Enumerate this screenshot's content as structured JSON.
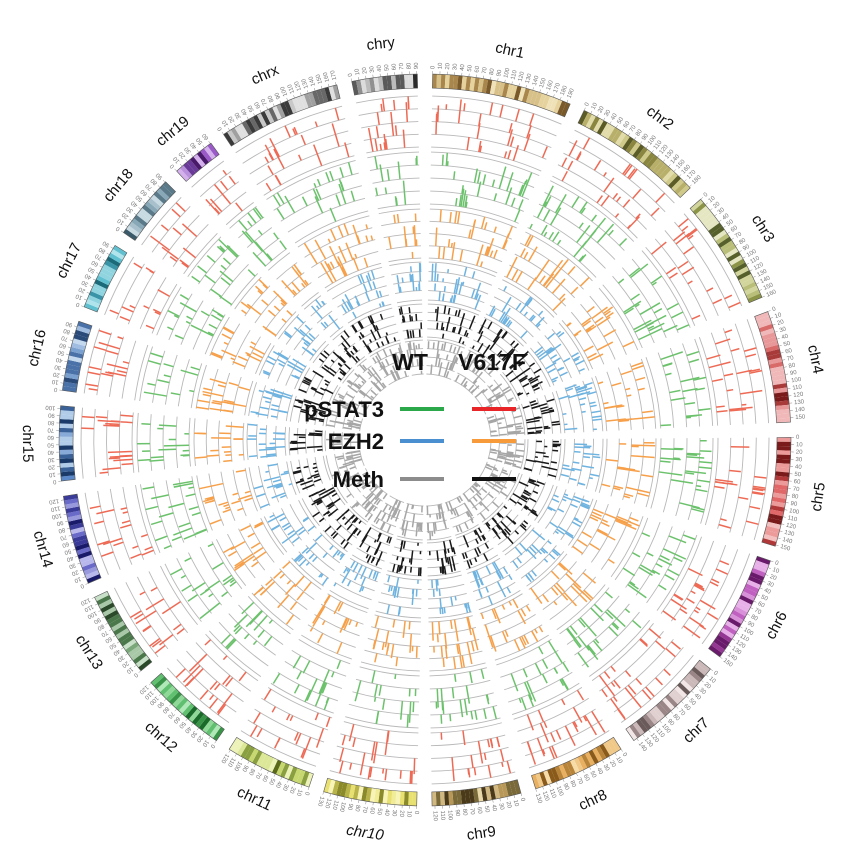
{
  "chromosomes": [
    {
      "name": "chr1",
      "size": 195,
      "ticks": [
        0,
        10,
        20,
        30,
        40,
        50,
        60,
        70,
        80,
        90,
        100,
        110,
        120,
        130,
        140,
        150,
        160,
        170,
        180,
        190
      ],
      "band_colors": [
        "#7a5a2a",
        "#d8c089",
        "#f0e2b8",
        "#a9874c",
        "#e6d29d"
      ]
    },
    {
      "name": "chr2",
      "size": 182,
      "ticks": [
        0,
        10,
        20,
        30,
        40,
        50,
        60,
        70,
        80,
        90,
        100,
        110,
        120,
        130,
        140,
        150,
        160,
        170,
        180
      ],
      "band_colors": [
        "#5b5b25",
        "#b8b06a",
        "#e2dcaa",
        "#8a8640",
        "#cfc98a"
      ]
    },
    {
      "name": "chr3",
      "size": 160,
      "ticks": [
        0,
        10,
        20,
        30,
        40,
        50,
        60,
        70,
        80,
        90,
        100,
        110,
        120,
        130,
        140,
        150,
        160
      ],
      "band_colors": [
        "#55602a",
        "#b9be78",
        "#e5e7c2",
        "#8c9448",
        "#d2d59c"
      ]
    },
    {
      "name": "chr4",
      "size": 156,
      "ticks": [
        0,
        10,
        20,
        30,
        40,
        50,
        60,
        70,
        80,
        90,
        100,
        110,
        120,
        130,
        140,
        150
      ],
      "band_colors": [
        "#7a1a1a",
        "#d86a6a",
        "#f0b8b8",
        "#a83a3a",
        "#e89898"
      ]
    },
    {
      "name": "chr5",
      "size": 152,
      "ticks": [
        0,
        10,
        20,
        30,
        40,
        50,
        60,
        70,
        80,
        90,
        100,
        110,
        120,
        130,
        140,
        150
      ],
      "band_colors": [
        "#7a1a1a",
        "#e06868",
        "#f4c0c0",
        "#b03838",
        "#ec9a9a"
      ]
    },
    {
      "name": "chr6",
      "size": 150,
      "ticks": [
        0,
        10,
        20,
        30,
        40,
        50,
        60,
        70,
        80,
        90,
        100,
        110,
        120,
        130,
        140,
        150
      ],
      "band_colors": [
        "#6a1a6a",
        "#c060c0",
        "#e8b0e8",
        "#943894",
        "#d890d8"
      ]
    },
    {
      "name": "chr7",
      "size": 145,
      "ticks": [
        0,
        10,
        20,
        30,
        40,
        50,
        60,
        70,
        80,
        90,
        100,
        110,
        120,
        130,
        140
      ],
      "band_colors": [
        "#6a5a5a",
        "#cbb8b8",
        "#f2e6e6",
        "#9a8686",
        "#e0d0d0"
      ]
    },
    {
      "name": "chr8",
      "size": 130,
      "ticks": [
        0,
        10,
        20,
        30,
        40,
        50,
        60,
        70,
        80,
        90,
        100,
        110,
        120,
        130
      ],
      "band_colors": [
        "#8a5a1a",
        "#e8b060",
        "#f8dca8",
        "#b8843a",
        "#f0c888"
      ]
    },
    {
      "name": "chr9",
      "size": 124,
      "ticks": [
        0,
        10,
        20,
        30,
        40,
        50,
        60,
        70,
        80,
        90,
        100,
        110,
        120
      ],
      "band_colors": [
        "#4a3a1a",
        "#b89858",
        "#e8d8a8",
        "#7a6a3a",
        "#d0b880"
      ]
    },
    {
      "name": "chr10",
      "size": 130,
      "ticks": [
        0,
        10,
        20,
        30,
        40,
        50,
        60,
        70,
        80,
        90,
        100,
        110,
        120,
        130
      ],
      "band_colors": [
        "#8a8a2a",
        "#e8e070",
        "#f8f4b8",
        "#b8b44a",
        "#f0ec98"
      ]
    },
    {
      "name": "chr11",
      "size": 122,
      "ticks": [
        0,
        10,
        20,
        30,
        40,
        50,
        60,
        70,
        80,
        90,
        100,
        110,
        120
      ],
      "band_colors": [
        "#5a6a1a",
        "#c8d870",
        "#ecf2b8",
        "#8aa040",
        "#dce898"
      ]
    },
    {
      "name": "chr12",
      "size": 121,
      "ticks": [
        0,
        10,
        20,
        30,
        40,
        50,
        60,
        70,
        80,
        90,
        100,
        110,
        120
      ],
      "band_colors": [
        "#1a6a2a",
        "#60c070",
        "#b0e8b8",
        "#3a9448",
        "#90d898"
      ]
    },
    {
      "name": "chr13",
      "size": 120,
      "ticks": [
        0,
        10,
        20,
        30,
        40,
        50,
        60,
        70,
        80,
        90,
        100,
        110,
        120
      ],
      "band_colors": [
        "#2a4a2a",
        "#7aa87a",
        "#c8e0c8",
        "#4a784a",
        "#a8c8a8"
      ]
    },
    {
      "name": "chr14",
      "size": 125,
      "ticks": [
        0,
        10,
        20,
        30,
        40,
        50,
        60,
        70,
        80,
        90,
        100,
        110,
        120
      ],
      "band_colors": [
        "#1a1a6a",
        "#6a6ac8",
        "#b8b8ec",
        "#3a3a98",
        "#9898dc"
      ]
    },
    {
      "name": "chr15",
      "size": 104,
      "ticks": [
        0,
        10,
        20,
        30,
        40,
        50,
        60,
        70,
        80,
        90,
        100
      ],
      "band_colors": [
        "#1a3a6a",
        "#5a88c8",
        "#b0cce8",
        "#3a6298",
        "#88aad8"
      ]
    },
    {
      "name": "chr16",
      "size": 98,
      "ticks": [
        0,
        10,
        20,
        30,
        40,
        50,
        60,
        70,
        80,
        90
      ],
      "band_colors": [
        "#2a4a7a",
        "#7aa0d0",
        "#c4d8ee",
        "#4a72a8",
        "#a0bce0"
      ]
    },
    {
      "name": "chr17",
      "size": 95,
      "ticks": [
        0,
        10,
        20,
        30,
        40,
        50,
        60,
        70,
        80,
        90
      ],
      "band_colors": [
        "#1a6a7a",
        "#60c0d0",
        "#b0e4ec",
        "#3a94a8",
        "#90d4e0"
      ]
    },
    {
      "name": "chr18",
      "size": 91,
      "ticks": [
        0,
        10,
        20,
        30,
        40,
        50,
        60,
        70,
        80,
        90
      ],
      "band_colors": [
        "#3a5a6a",
        "#88a8b8",
        "#c8dae2",
        "#5a7a8a",
        "#a8c0cc"
      ]
    },
    {
      "name": "chr19",
      "size": 61,
      "ticks": [
        0,
        10,
        20,
        30,
        40,
        50,
        60
      ],
      "band_colors": [
        "#4a1a6a",
        "#9a5ac8",
        "#d4b0ec",
        "#6a3a98",
        "#b890dc"
      ]
    },
    {
      "name": "chrx",
      "size": 171,
      "ticks": [
        0,
        10,
        20,
        30,
        40,
        50,
        60,
        70,
        80,
        90,
        100,
        110,
        120,
        130,
        140,
        150,
        160,
        170
      ],
      "band_colors": [
        "#3a3a3a",
        "#a0a0a0",
        "#e0e0e0",
        "#686868",
        "#c8c8c8"
      ]
    },
    {
      "name": "chry",
      "size": 91,
      "ticks": [
        0,
        10,
        20,
        30,
        40,
        50,
        60,
        70,
        80,
        90
      ],
      "band_colors": [
        "#2a2a2a",
        "#909090",
        "#dcdcdc",
        "#5a5a5a",
        "#bcbcbc"
      ]
    }
  ],
  "tracks": [
    {
      "id": "pstat3_v617f",
      "name": "pStat3 V617F",
      "color": "#ee6a55"
    },
    {
      "id": "pstat3_wt",
      "name": "pStat3 WT",
      "color": "#6cc26c"
    },
    {
      "id": "ezh2_v617f",
      "name": "EZH2 V617F",
      "color": "#f7a04a"
    },
    {
      "id": "ezh2_wt",
      "name": "EZH2 WT",
      "color": "#6fb3e0"
    },
    {
      "id": "meth_v617f",
      "name": "Meth V617F",
      "color": "#1a1a1a"
    },
    {
      "id": "meth_wt",
      "name": "Meth WT",
      "color": "#a6a6a6"
    }
  ],
  "legend": {
    "col_wt": "WT",
    "col_v617f": "V617F",
    "rows": [
      {
        "label": "pSTAT3",
        "wt_color": "#2aa84a",
        "v617f_color": "#e8262a"
      },
      {
        "label": "EZH2",
        "wt_color": "#4a90d0",
        "v617f_color": "#f79a3a"
      },
      {
        "label": "Meth",
        "wt_color": "#8c8c8c",
        "v617f_color": "#111111"
      }
    ]
  }
}
